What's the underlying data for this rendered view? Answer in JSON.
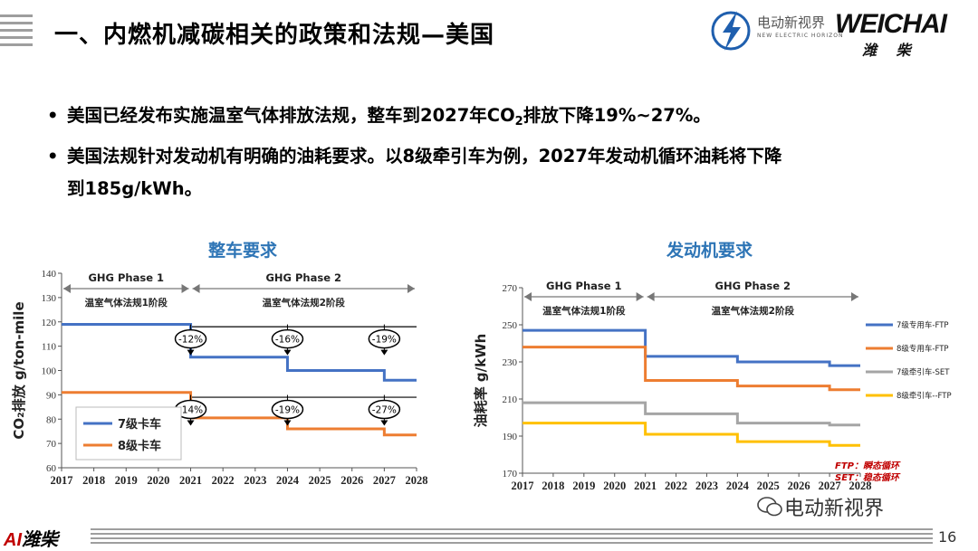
{
  "header": {
    "title": "一、内燃机减碳相关的政策和法规—美国",
    "logo_cn": "电动新视界",
    "logo_en": "NEW ELECTRIC HORIZON",
    "brand": "WEICHAI",
    "brand_cn": "潍 柴"
  },
  "bullets": {
    "b1_pre": "美国已经发布实施温室气体排放法规，整车到2027年CO",
    "b1_sub": "2",
    "b1_post": "排放下降19%~27%。",
    "b2_line1": "美国法规针对发动机有明确的油耗要求。以8级牵引车为例，2027年发动机循环油耗将下降",
    "b2_line2": "到185g/kWh。"
  },
  "footer": {
    "logo_ai": "AI",
    "logo_cn": "潍柴",
    "page": "16",
    "watermark": "电动新视界"
  },
  "chart_data": [
    {
      "type": "line",
      "title": "整车要求",
      "xlabel": "",
      "ylabel": "CO₂排放 g/ton-mile",
      "x": [
        2017,
        2018,
        2019,
        2020,
        2021,
        2022,
        2023,
        2024,
        2025,
        2026,
        2027,
        2028
      ],
      "ylim": [
        60,
        140
      ],
      "yticks": [
        60,
        70,
        80,
        90,
        100,
        110,
        120,
        130,
        140
      ],
      "legend_position": "bottom-left",
      "series": [
        {
          "name": "7级卡车",
          "color": "#4472c4",
          "points": [
            [
              2017,
              119
            ],
            [
              2021,
              119
            ],
            [
              2021,
              105.5
            ],
            [
              2024,
              105.5
            ],
            [
              2024,
              100
            ],
            [
              2027,
              100
            ],
            [
              2027,
              96
            ],
            [
              2028,
              96
            ]
          ]
        },
        {
          "name": "8级卡车",
          "color": "#ed7d31",
          "points": [
            [
              2017,
              91
            ],
            [
              2021,
              91
            ],
            [
              2021,
              80.5
            ],
            [
              2024,
              80.5
            ],
            [
              2024,
              76
            ],
            [
              2027,
              76
            ],
            [
              2027,
              73.5
            ],
            [
              2028,
              73.5
            ]
          ]
        }
      ],
      "phases": [
        {
          "label": "GHG Phase 1",
          "sub": "温室气体法规1阶段",
          "from": 2017,
          "to": 2021
        },
        {
          "label": "GHG Phase 2",
          "sub": "温室气体法规2阶段",
          "from": 2021,
          "to": 2028
        }
      ],
      "reference_lines": [
        118,
        89
      ],
      "annotations": [
        {
          "text": "-12%",
          "x": 2021,
          "y": 113
        },
        {
          "text": "-16%",
          "x": 2024,
          "y": 113
        },
        {
          "text": "-19%",
          "x": 2027,
          "y": 113
        },
        {
          "text": "-14%",
          "x": 2021,
          "y": 84
        },
        {
          "text": "-19%",
          "x": 2024,
          "y": 84
        },
        {
          "text": "-27%",
          "x": 2027,
          "y": 84
        }
      ]
    },
    {
      "type": "line",
      "title": "发动机要求",
      "xlabel": "",
      "ylabel": "油耗率 g/kWh",
      "x": [
        2017,
        2018,
        2019,
        2020,
        2021,
        2022,
        2023,
        2024,
        2025,
        2026,
        2027,
        2028
      ],
      "ylim": [
        170,
        270
      ],
      "yticks": [
        170,
        190,
        210,
        230,
        250,
        270
      ],
      "legend_position": "right",
      "series": [
        {
          "name": "7级专用车-FTP",
          "color": "#4472c4",
          "points": [
            [
              2017,
              247
            ],
            [
              2021,
              247
            ],
            [
              2021,
              233
            ],
            [
              2024,
              233
            ],
            [
              2024,
              230
            ],
            [
              2027,
              230
            ],
            [
              2027,
              228
            ],
            [
              2028,
              228
            ]
          ]
        },
        {
          "name": "8级专用车-FTP",
          "color": "#ed7d31",
          "points": [
            [
              2017,
              238
            ],
            [
              2021,
              238
            ],
            [
              2021,
              220
            ],
            [
              2024,
              220
            ],
            [
              2024,
              217
            ],
            [
              2027,
              217
            ],
            [
              2027,
              215
            ],
            [
              2028,
              215
            ]
          ]
        },
        {
          "name": "7级牵引车-SET",
          "color": "#a5a5a5",
          "points": [
            [
              2017,
              208
            ],
            [
              2021,
              208
            ],
            [
              2021,
              202
            ],
            [
              2024,
              202
            ],
            [
              2024,
              197
            ],
            [
              2027,
              197
            ],
            [
              2027,
              196
            ],
            [
              2028,
              196
            ]
          ]
        },
        {
          "name": "8级牵引车--FTP",
          "color": "#ffc000",
          "points": [
            [
              2017,
              197
            ],
            [
              2021,
              197
            ],
            [
              2021,
              191
            ],
            [
              2024,
              191
            ],
            [
              2024,
              187
            ],
            [
              2027,
              187
            ],
            [
              2027,
              185
            ],
            [
              2028,
              185
            ]
          ]
        }
      ],
      "phases": [
        {
          "label": "GHG Phase 1",
          "sub": "温室气体法规1阶段",
          "from": 2017,
          "to": 2021
        },
        {
          "label": "GHG Phase 2",
          "sub": "温室气体法规2阶段",
          "from": 2021,
          "to": 2028
        }
      ],
      "notes": [
        "FTP：瞬态循环",
        "SET：稳态循环"
      ]
    }
  ]
}
